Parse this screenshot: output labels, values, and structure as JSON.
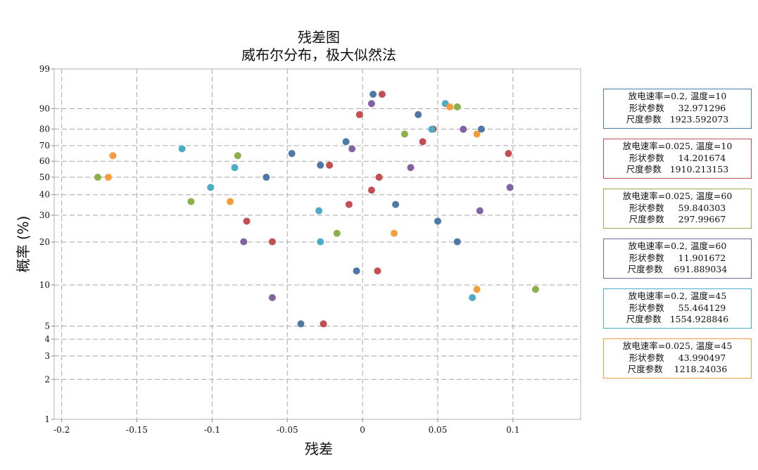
{
  "chart_data": {
    "type": "scatter",
    "title": "残差图",
    "subtitle": "威布尔分布，极大似然法",
    "xlabel": "残差",
    "ylabel": "概率 (%)",
    "xlim": [
      -0.205,
      0.145
    ],
    "y_scale": "weibull-probability",
    "xticks": [
      "-0.2",
      "-0.15",
      "-0.1",
      "-0.05",
      "0",
      "0.05",
      "0.1"
    ],
    "xtick_values": [
      -0.2,
      -0.15,
      -0.1,
      -0.05,
      0,
      0.05,
      0.1
    ],
    "yticks": [
      "1",
      "2",
      "3",
      "4",
      "5",
      "10",
      "20",
      "30",
      "40",
      "50",
      "60",
      "70",
      "80",
      "90",
      "99"
    ],
    "ytick_values": [
      1,
      2,
      3,
      4,
      5,
      10,
      20,
      30,
      40,
      50,
      60,
      70,
      80,
      90,
      99
    ],
    "grid": true,
    "legend_position": "right",
    "series": [
      {
        "name": "放电速率=0.2, 温度=10",
        "color": "#4e79a7",
        "shape_label": "形状参数",
        "shape_value": "32.971296",
        "scale_label": "尺度参数",
        "scale_value": "1923.592073",
        "points": [
          [
            -0.041,
            5.2
          ],
          [
            -0.004,
            12.6
          ],
          [
            0.063,
            20.1
          ],
          [
            0.05,
            27.5
          ],
          [
            0.022,
            35
          ],
          [
            -0.064,
            50
          ],
          [
            -0.028,
            57.5
          ],
          [
            -0.047,
            65
          ],
          [
            -0.011,
            72.5
          ],
          [
            0.079,
            80
          ],
          [
            0.037,
            87.4
          ],
          [
            0.007,
            94.8
          ]
        ]
      },
      {
        "name": "放电速率=0.025, 温度=10",
        "color": "#c44e52",
        "shape_label": "形状参数",
        "shape_value": "14.201674",
        "scale_label": "尺度参数",
        "scale_value": "1910.213153",
        "points": [
          [
            -0.026,
            5.2
          ],
          [
            0.01,
            12.6
          ],
          [
            -0.06,
            20.1
          ],
          [
            -0.077,
            27.5
          ],
          [
            -0.009,
            35
          ],
          [
            0.006,
            42.5
          ],
          [
            0.011,
            50
          ],
          [
            -0.022,
            57.5
          ],
          [
            0.097,
            65
          ],
          [
            0.04,
            72.5
          ],
          [
            0.047,
            80
          ],
          [
            -0.002,
            87.4
          ],
          [
            0.013,
            94.8
          ]
        ]
      },
      {
        "name": "放电速率=0.025, 温度=60",
        "color": "#8cb04a",
        "shape_label": "形状参数",
        "shape_value": "59.840303",
        "scale_label": "尺度参数",
        "scale_value": "297.99667",
        "points": [
          [
            0.115,
            9.3
          ],
          [
            -0.017,
            22.9
          ],
          [
            -0.114,
            36.4
          ],
          [
            -0.176,
            50
          ],
          [
            -0.083,
            63.6
          ],
          [
            0.028,
            77.1
          ],
          [
            0.063,
            90.7
          ]
        ]
      },
      {
        "name": "放电速率=0.2, 温度=60",
        "color": "#8064a2",
        "shape_label": "形状参数",
        "shape_value": "11.901672",
        "scale_label": "尺度参数",
        "scale_value": "691.889034",
        "points": [
          [
            -0.06,
            8.1
          ],
          [
            -0.079,
            20.1
          ],
          [
            0.078,
            32
          ],
          [
            0.098,
            44
          ],
          [
            0.032,
            56
          ],
          [
            -0.007,
            68
          ],
          [
            0.067,
            79.9
          ],
          [
            0.006,
            91.9
          ]
        ]
      },
      {
        "name": "放电速率=0.2, 温度=45",
        "color": "#4aacc6",
        "shape_label": "形状参数",
        "shape_value": "55.464129",
        "scale_label": "尺度参数",
        "scale_value": "1554.928846",
        "points": [
          [
            0.073,
            8.1
          ],
          [
            -0.028,
            20.1
          ],
          [
            -0.029,
            32
          ],
          [
            -0.101,
            44
          ],
          [
            -0.085,
            56
          ],
          [
            -0.12,
            68
          ],
          [
            0.046,
            79.9
          ],
          [
            0.055,
            91.9
          ]
        ]
      },
      {
        "name": "放电速率=0.025, 温度=45",
        "color": "#f59d3d",
        "shape_label": "形状参数",
        "shape_value": "43.990497",
        "scale_label": "尺度参数",
        "scale_value": "1218.24036",
        "points": [
          [
            0.076,
            9.3
          ],
          [
            0.021,
            22.9
          ],
          [
            -0.088,
            36.4
          ],
          [
            -0.169,
            50
          ],
          [
            -0.166,
            63.6
          ],
          [
            0.076,
            77.1
          ],
          [
            0.058,
            90.7
          ]
        ]
      }
    ]
  }
}
